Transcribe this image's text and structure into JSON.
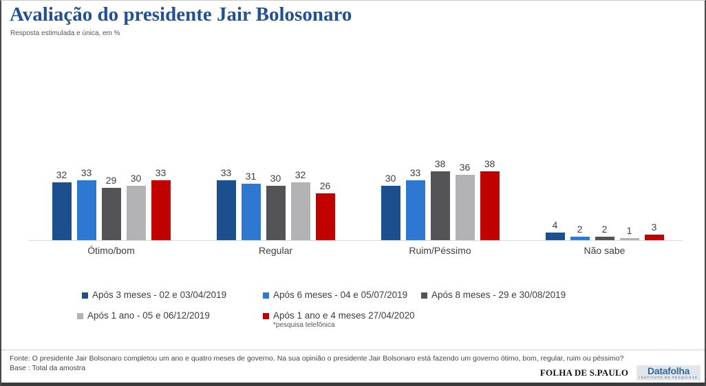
{
  "header": {
    "title": "Avaliação do presidente Jair Bolosonaro",
    "subtitle": "Resposta estimulada e única, em %"
  },
  "chart_data": {
    "type": "bar",
    "title": "Avaliação do presidente Jair Bolosonaro",
    "subtitle": "Resposta estimulada e única, em %",
    "unit": "%",
    "categories": [
      "Ótimo/bom",
      "Regular",
      "Ruim/Péssimo",
      "Não sabe"
    ],
    "series": [
      {
        "name": "Após 3 meses - 02 e 03/04/2019",
        "color": "#1d4e8e",
        "values": [
          32,
          33,
          30,
          4
        ]
      },
      {
        "name": "Após 6 meses - 04 e 05/07/2019",
        "color": "#2e78d2",
        "values": [
          33,
          31,
          33,
          2
        ]
      },
      {
        "name": "Após 8 meses - 29 e 30/08/2019",
        "color": "#545456",
        "values": [
          29,
          30,
          38,
          2
        ]
      },
      {
        "name": "Após 1 ano - 05 e 06/12/2019",
        "color": "#b3b3b5",
        "values": [
          30,
          32,
          36,
          1
        ]
      },
      {
        "name": "Após 1 ano e 4 meses 27/04/2020",
        "color": "#c10000",
        "values": [
          33,
          26,
          38,
          3
        ],
        "note": "*pesquisa telefônica"
      }
    ],
    "ylim": [
      0,
      45
    ],
    "value_labels": true,
    "grid": false,
    "legend_position": "bottom"
  },
  "footer": {
    "source": "Fonte: O presidente Jair Bolsonaro completou um ano e quatro meses de governo. Na sua opinião o presidente Jair Bolsonaro está fazendo um governo ótimo, bom, regular, ruim ou péssimo?",
    "base": "Base : Total da amostra"
  },
  "branding": {
    "folha": "FOLHA DE S.PAULO",
    "datafolha": "Datafolha",
    "datafolha_sub": "INSTITUTO DE PESQUISAS",
    "datafolha_color": "#2b6ca3"
  }
}
